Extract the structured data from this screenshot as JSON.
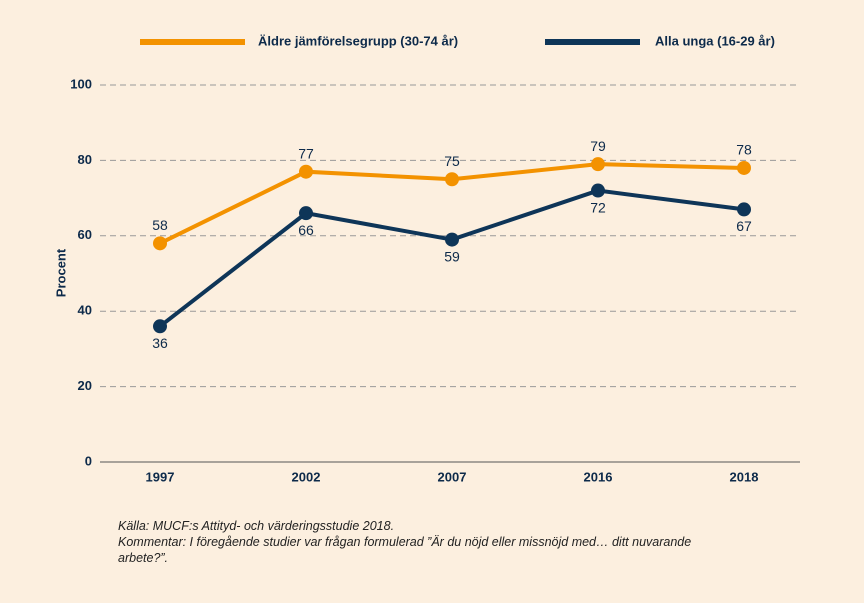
{
  "chart_data": {
    "type": "line",
    "categories": [
      "1997",
      "2002",
      "2007",
      "2016",
      "2018"
    ],
    "series": [
      {
        "name": "Äldre jämförelsegrupp (30-74 år)",
        "color": "#f39200",
        "values": [
          58,
          77,
          75,
          79,
          78
        ]
      },
      {
        "name": "Alla unga (16-29 år)",
        "color": "#0e3558",
        "values": [
          36,
          66,
          59,
          72,
          67
        ]
      }
    ],
    "ylabel": "Procent",
    "ylim": [
      0,
      100
    ],
    "yticks": [
      0,
      20,
      40,
      60,
      80,
      100
    ],
    "grid": true,
    "legend": "top",
    "source": "Källa: MUCF:s Attityd- och värderingsstudie 2018.",
    "comment": "Kommentar: I föregående studier var frågan formulerad ”Är du nöjd eller missnöjd med… ditt nuvarande arbete?”."
  }
}
